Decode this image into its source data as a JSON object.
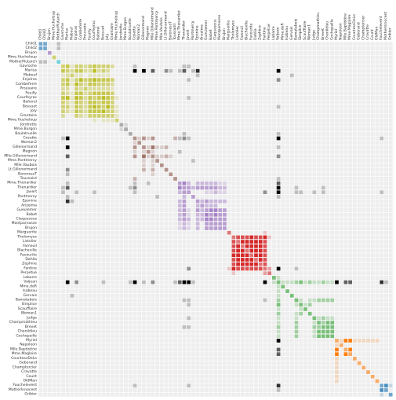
{
  "chart_data": {
    "type": "heatmap",
    "title": "",
    "xlabel": "",
    "ylabel": "",
    "legend": "none",
    "grid": true,
    "nodes": [
      {
        "name": "Child1",
        "group": 10
      },
      {
        "name": "Child2",
        "group": 10
      },
      {
        "name": "Brujon",
        "group": 4
      },
      {
        "name": "Mme.Hucheloup",
        "group": 8
      },
      {
        "name": "MotherPlutarch",
        "group": 9
      },
      {
        "name": "Gavroche",
        "group": 8
      },
      {
        "name": "Marius",
        "group": 8
      },
      {
        "name": "Mabeuf",
        "group": 8
      },
      {
        "name": "Enjolras",
        "group": 8
      },
      {
        "name": "Combeferre",
        "group": 8
      },
      {
        "name": "Prouvaire",
        "group": 8
      },
      {
        "name": "Feuilly",
        "group": 8
      },
      {
        "name": "Courfeyrac",
        "group": 8
      },
      {
        "name": "Bahorel",
        "group": 8
      },
      {
        "name": "Bossuet",
        "group": 8
      },
      {
        "name": "Joly",
        "group": 8
      },
      {
        "name": "Grantaire",
        "group": 8
      },
      {
        "name": "Mme.Hucheloup",
        "group": 8
      },
      {
        "name": "Jondrette",
        "group": 7
      },
      {
        "name": "Mme.Burgon",
        "group": 7
      },
      {
        "name": "Boulatruelle",
        "group": 6
      },
      {
        "name": "Cosette",
        "group": 5
      },
      {
        "name": "Woman2",
        "group": 5
      },
      {
        "name": "Gillenormand",
        "group": 5
      },
      {
        "name": "Magnon",
        "group": 5
      },
      {
        "name": "Mlle.Gillenormand",
        "group": 5
      },
      {
        "name": "Mme.Pontmercy",
        "group": 5
      },
      {
        "name": "Mlle.Vaubois",
        "group": 5
      },
      {
        "name": "Lt.Gillenormand",
        "group": 5
      },
      {
        "name": "BaronessT",
        "group": 5
      },
      {
        "name": "Toussaint",
        "group": 5
      },
      {
        "name": "Mme.Thenardier",
        "group": 4
      },
      {
        "name": "Thenardier",
        "group": 4
      },
      {
        "name": "Javert",
        "group": 4
      },
      {
        "name": "Pontmercy",
        "group": 4
      },
      {
        "name": "Eponine",
        "group": 4
      },
      {
        "name": "Anzelma",
        "group": 4
      },
      {
        "name": "Gueulemer",
        "group": 4
      },
      {
        "name": "Babet",
        "group": 4
      },
      {
        "name": "Claquesous",
        "group": 4
      },
      {
        "name": "Montparnasse",
        "group": 4
      },
      {
        "name": "Brujon",
        "group": 4
      },
      {
        "name": "Marguerite",
        "group": 3
      },
      {
        "name": "Tholomyes",
        "group": 3
      },
      {
        "name": "Listolier",
        "group": 3
      },
      {
        "name": "Fameuil",
        "group": 3
      },
      {
        "name": "Blacheville",
        "group": 3
      },
      {
        "name": "Favourite",
        "group": 3
      },
      {
        "name": "Dahlia",
        "group": 3
      },
      {
        "name": "Zephine",
        "group": 3
      },
      {
        "name": "Fantine",
        "group": 3
      },
      {
        "name": "Perpetue",
        "group": 3
      },
      {
        "name": "Labarre",
        "group": 2
      },
      {
        "name": "Valjean",
        "group": 2
      },
      {
        "name": "Mme.deR",
        "group": 2
      },
      {
        "name": "Isabeau",
        "group": 2
      },
      {
        "name": "Gervais",
        "group": 2
      },
      {
        "name": "Bamatabois",
        "group": 2
      },
      {
        "name": "Simplice",
        "group": 2
      },
      {
        "name": "Scaufflaire",
        "group": 2
      },
      {
        "name": "Woman1",
        "group": 2
      },
      {
        "name": "Judge",
        "group": 2
      },
      {
        "name": "Champmathieu",
        "group": 2
      },
      {
        "name": "Brevet",
        "group": 2
      },
      {
        "name": "Chenildieu",
        "group": 2
      },
      {
        "name": "Cochepaille",
        "group": 2
      },
      {
        "name": "Myriel",
        "group": 1
      },
      {
        "name": "Napoleon",
        "group": 1
      },
      {
        "name": "Mlle.Baptistine",
        "group": 1
      },
      {
        "name": "Mme.Magloire",
        "group": 1
      },
      {
        "name": "CountessDeLo",
        "group": 1
      },
      {
        "name": "Geborand",
        "group": 1
      },
      {
        "name": "Champtercier",
        "group": 1
      },
      {
        "name": "Cravatte",
        "group": 1
      },
      {
        "name": "Count",
        "group": 1
      },
      {
        "name": "OldMan",
        "group": 1
      },
      {
        "name": "Fauchelevent",
        "group": 0
      },
      {
        "name": "MotherInnocent",
        "group": 0
      },
      {
        "name": "Gribier",
        "group": 0
      }
    ],
    "links": [
      [
        0,
        1,
        3
      ],
      [
        0,
        4,
        1
      ],
      [
        1,
        4,
        1
      ],
      [
        5,
        6,
        4
      ],
      [
        5,
        8,
        3
      ],
      [
        5,
        9,
        3
      ],
      [
        5,
        10,
        2
      ],
      [
        5,
        11,
        3
      ],
      [
        5,
        12,
        4
      ],
      [
        5,
        13,
        3
      ],
      [
        5,
        14,
        3
      ],
      [
        5,
        15,
        3
      ],
      [
        5,
        16,
        2
      ],
      [
        5,
        7,
        1
      ],
      [
        5,
        32,
        1
      ],
      [
        5,
        33,
        1
      ],
      [
        5,
        21,
        1
      ],
      [
        6,
        7,
        2
      ],
      [
        6,
        8,
        4
      ],
      [
        6,
        9,
        4
      ],
      [
        6,
        10,
        2
      ],
      [
        6,
        11,
        2
      ],
      [
        6,
        12,
        5
      ],
      [
        6,
        13,
        2
      ],
      [
        6,
        14,
        3
      ],
      [
        6,
        15,
        2
      ],
      [
        6,
        21,
        6
      ],
      [
        6,
        23,
        5
      ],
      [
        6,
        25,
        3
      ],
      [
        6,
        28,
        2
      ],
      [
        6,
        31,
        1
      ],
      [
        6,
        32,
        3
      ],
      [
        6,
        35,
        4
      ],
      [
        6,
        53,
        5
      ],
      [
        6,
        34,
        1
      ],
      [
        7,
        8,
        1
      ],
      [
        7,
        9,
        1
      ],
      [
        7,
        11,
        1
      ],
      [
        7,
        12,
        1
      ],
      [
        7,
        13,
        1
      ],
      [
        7,
        14,
        1
      ],
      [
        7,
        15,
        1
      ],
      [
        7,
        35,
        1
      ],
      [
        7,
        56,
        1
      ],
      [
        8,
        9,
        5
      ],
      [
        8,
        10,
        3
      ],
      [
        8,
        11,
        4
      ],
      [
        8,
        12,
        5
      ],
      [
        8,
        13,
        4
      ],
      [
        8,
        14,
        4
      ],
      [
        8,
        15,
        4
      ],
      [
        8,
        16,
        3
      ],
      [
        8,
        33,
        1
      ],
      [
        8,
        53,
        2
      ],
      [
        9,
        10,
        2
      ],
      [
        9,
        11,
        4
      ],
      [
        9,
        12,
        4
      ],
      [
        9,
        13,
        3
      ],
      [
        9,
        14,
        3
      ],
      [
        9,
        15,
        3
      ],
      [
        9,
        16,
        2
      ],
      [
        10,
        11,
        2
      ],
      [
        10,
        12,
        2
      ],
      [
        10,
        13,
        2
      ],
      [
        10,
        14,
        2
      ],
      [
        10,
        15,
        2
      ],
      [
        10,
        16,
        1
      ],
      [
        11,
        12,
        4
      ],
      [
        11,
        13,
        4
      ],
      [
        11,
        14,
        4
      ],
      [
        11,
        15,
        4
      ],
      [
        11,
        16,
        3
      ],
      [
        12,
        13,
        4
      ],
      [
        12,
        14,
        5
      ],
      [
        12,
        15,
        4
      ],
      [
        12,
        16,
        3
      ],
      [
        12,
        17,
        1
      ],
      [
        12,
        33,
        1
      ],
      [
        12,
        6,
        5
      ],
      [
        13,
        14,
        4
      ],
      [
        13,
        15,
        4
      ],
      [
        13,
        16,
        3
      ],
      [
        14,
        15,
        5
      ],
      [
        14,
        16,
        3
      ],
      [
        14,
        17,
        1
      ],
      [
        14,
        53,
        1
      ],
      [
        15,
        16,
        3
      ],
      [
        15,
        17,
        1
      ],
      [
        16,
        17,
        1
      ],
      [
        19,
        18,
        1
      ],
      [
        20,
        32,
        1
      ],
      [
        20,
        53,
        1
      ],
      [
        21,
        22,
        1
      ],
      [
        21,
        23,
        3
      ],
      [
        21,
        24,
        1
      ],
      [
        21,
        25,
        3
      ],
      [
        21,
        30,
        2
      ],
      [
        21,
        31,
        1
      ],
      [
        21,
        32,
        2
      ],
      [
        21,
        33,
        1
      ],
      [
        21,
        53,
        5
      ],
      [
        21,
        76,
        1
      ],
      [
        23,
        24,
        1
      ],
      [
        23,
        25,
        4
      ],
      [
        23,
        26,
        1
      ],
      [
        23,
        27,
        1
      ],
      [
        23,
        28,
        2
      ],
      [
        23,
        53,
        1
      ],
      [
        24,
        25,
        1
      ],
      [
        24,
        31,
        1
      ],
      [
        25,
        26,
        1
      ],
      [
        25,
        27,
        1
      ],
      [
        25,
        28,
        2
      ],
      [
        25,
        53,
        2
      ],
      [
        26,
        34,
        1
      ],
      [
        29,
        6,
        1
      ],
      [
        29,
        25,
        1
      ],
      [
        30,
        53,
        1
      ],
      [
        31,
        32,
        4
      ],
      [
        31,
        33,
        2
      ],
      [
        31,
        35,
        2
      ],
      [
        31,
        36,
        2
      ],
      [
        31,
        37,
        2
      ],
      [
        31,
        38,
        2
      ],
      [
        31,
        39,
        2
      ],
      [
        31,
        53,
        3
      ],
      [
        31,
        41,
        1
      ],
      [
        31,
        40,
        1
      ],
      [
        32,
        33,
        3
      ],
      [
        32,
        34,
        2
      ],
      [
        32,
        35,
        3
      ],
      [
        32,
        36,
        3
      ],
      [
        32,
        37,
        3
      ],
      [
        32,
        38,
        3
      ],
      [
        32,
        39,
        3
      ],
      [
        32,
        40,
        2
      ],
      [
        32,
        41,
        2
      ],
      [
        32,
        53,
        5
      ],
      [
        32,
        57,
        1
      ],
      [
        32,
        63,
        1
      ],
      [
        33,
        37,
        1
      ],
      [
        33,
        38,
        1
      ],
      [
        33,
        39,
        2
      ],
      [
        33,
        40,
        1
      ],
      [
        33,
        41,
        1
      ],
      [
        33,
        50,
        2
      ],
      [
        33,
        53,
        5
      ],
      [
        33,
        58,
        1
      ],
      [
        33,
        63,
        1
      ],
      [
        33,
        76,
        1
      ],
      [
        33,
        61,
        1
      ],
      [
        33,
        57,
        1
      ],
      [
        34,
        53,
        1
      ],
      [
        35,
        36,
        2
      ],
      [
        35,
        37,
        3
      ],
      [
        35,
        38,
        2
      ],
      [
        35,
        39,
        2
      ],
      [
        35,
        40,
        2
      ],
      [
        35,
        41,
        2
      ],
      [
        36,
        37,
        2
      ],
      [
        36,
        38,
        2
      ],
      [
        36,
        39,
        2
      ],
      [
        37,
        38,
        4
      ],
      [
        37,
        39,
        4
      ],
      [
        37,
        40,
        3
      ],
      [
        37,
        41,
        3
      ],
      [
        38,
        39,
        4
      ],
      [
        38,
        40,
        3
      ],
      [
        38,
        41,
        3
      ],
      [
        39,
        40,
        3
      ],
      [
        39,
        41,
        3
      ],
      [
        40,
        41,
        3
      ],
      [
        42,
        50,
        1
      ],
      [
        43,
        44,
        4
      ],
      [
        43,
        45,
        4
      ],
      [
        43,
        46,
        4
      ],
      [
        43,
        47,
        5
      ],
      [
        43,
        48,
        4
      ],
      [
        43,
        49,
        4
      ],
      [
        43,
        50,
        5
      ],
      [
        43,
        51,
        1
      ],
      [
        44,
        45,
        5
      ],
      [
        44,
        46,
        5
      ],
      [
        44,
        47,
        5
      ],
      [
        44,
        48,
        5
      ],
      [
        44,
        49,
        5
      ],
      [
        44,
        50,
        4
      ],
      [
        45,
        46,
        5
      ],
      [
        45,
        47,
        5
      ],
      [
        45,
        48,
        5
      ],
      [
        45,
        49,
        5
      ],
      [
        45,
        50,
        4
      ],
      [
        46,
        47,
        5
      ],
      [
        46,
        48,
        5
      ],
      [
        46,
        49,
        5
      ],
      [
        46,
        50,
        4
      ],
      [
        47,
        48,
        5
      ],
      [
        47,
        49,
        5
      ],
      [
        47,
        50,
        4
      ],
      [
        48,
        49,
        5
      ],
      [
        48,
        50,
        4
      ],
      [
        49,
        50,
        4
      ],
      [
        50,
        51,
        2
      ],
      [
        50,
        53,
        5
      ],
      [
        50,
        57,
        1
      ],
      [
        52,
        53,
        1
      ],
      [
        53,
        54,
        1
      ],
      [
        53,
        55,
        1
      ],
      [
        53,
        56,
        1
      ],
      [
        53,
        57,
        2
      ],
      [
        53,
        58,
        3
      ],
      [
        53,
        59,
        1
      ],
      [
        53,
        60,
        2
      ],
      [
        53,
        61,
        1
      ],
      [
        53,
        62,
        1
      ],
      [
        53,
        63,
        2
      ],
      [
        53,
        64,
        1
      ],
      [
        53,
        65,
        1
      ],
      [
        53,
        66,
        5
      ],
      [
        53,
        68,
        3
      ],
      [
        53,
        69,
        3
      ],
      [
        53,
        76,
        4
      ],
      [
        53,
        77,
        1
      ],
      [
        57,
        58,
        1
      ],
      [
        57,
        60,
        1
      ],
      [
        57,
        61,
        1
      ],
      [
        57,
        62,
        2
      ],
      [
        57,
        63,
        2
      ],
      [
        57,
        64,
        2
      ],
      [
        57,
        65,
        2
      ],
      [
        58,
        59,
        1
      ],
      [
        58,
        60,
        2
      ],
      [
        61,
        62,
        1
      ],
      [
        61,
        63,
        2
      ],
      [
        61,
        64,
        1
      ],
      [
        61,
        65,
        1
      ],
      [
        62,
        63,
        2
      ],
      [
        62,
        64,
        3
      ],
      [
        62,
        65,
        3
      ],
      [
        63,
        64,
        3
      ],
      [
        63,
        65,
        3
      ],
      [
        64,
        65,
        3
      ],
      [
        66,
        67,
        1
      ],
      [
        66,
        68,
        5
      ],
      [
        66,
        69,
        5
      ],
      [
        66,
        70,
        1
      ],
      [
        66,
        71,
        1
      ],
      [
        66,
        72,
        1
      ],
      [
        66,
        73,
        1
      ],
      [
        66,
        74,
        1
      ],
      [
        66,
        75,
        1
      ],
      [
        68,
        69,
        5
      ],
      [
        76,
        77,
        4
      ],
      [
        76,
        78,
        1
      ]
    ]
  }
}
